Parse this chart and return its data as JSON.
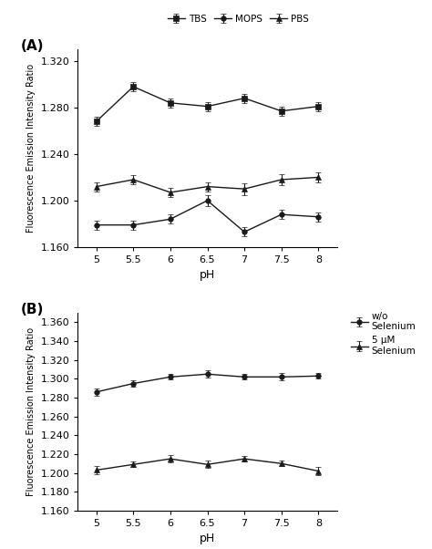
{
  "ph_values": [
    5,
    5.5,
    6,
    6.5,
    7,
    7.5,
    8
  ],
  "ph_labels": [
    "5",
    "5.5",
    "6",
    "6.5",
    "7",
    "7.5",
    "8"
  ],
  "panel_A": {
    "TBS_y": [
      1.268,
      1.298,
      1.284,
      1.281,
      1.288,
      1.277,
      1.281
    ],
    "TBS_err": [
      0.004,
      0.004,
      0.004,
      0.004,
      0.004,
      0.004,
      0.004
    ],
    "MOPS_y": [
      1.179,
      1.179,
      1.184,
      1.2,
      1.173,
      1.188,
      1.186
    ],
    "MOPS_err": [
      0.004,
      0.004,
      0.004,
      0.005,
      0.004,
      0.004,
      0.004
    ],
    "PBS_y": [
      1.212,
      1.218,
      1.207,
      1.212,
      1.21,
      1.218,
      1.22
    ],
    "PBS_err": [
      0.004,
      0.004,
      0.004,
      0.004,
      0.005,
      0.005,
      0.004
    ],
    "ylabel": "Fluorescence Emission Intensity Ratio",
    "xlabel": "pH",
    "ylim": [
      1.16,
      1.33
    ],
    "yticks": [
      1.16,
      1.2,
      1.24,
      1.28,
      1.32
    ],
    "label_A": "(A)"
  },
  "panel_B": {
    "wo_sel_y": [
      1.286,
      1.295,
      1.302,
      1.305,
      1.302,
      1.302,
      1.303
    ],
    "wo_sel_err": [
      0.004,
      0.003,
      0.003,
      0.004,
      0.003,
      0.004,
      0.003
    ],
    "with_sel_y": [
      1.203,
      1.209,
      1.215,
      1.209,
      1.215,
      1.21,
      1.202
    ],
    "with_sel_err": [
      0.004,
      0.003,
      0.004,
      0.004,
      0.003,
      0.003,
      0.004
    ],
    "ylabel": "Fluorescence Emission Intensity Ratio",
    "xlabel": "pH",
    "ylim": [
      1.16,
      1.37
    ],
    "yticks": [
      1.16,
      1.18,
      1.2,
      1.22,
      1.24,
      1.26,
      1.28,
      1.3,
      1.32,
      1.34,
      1.36
    ],
    "label_B": "(B)"
  },
  "line_color": "#1a1a1a",
  "marker_square": "s",
  "marker_circle": "o",
  "marker_triangle": "^",
  "markersize": 4,
  "linewidth": 1.0,
  "capsize": 2,
  "elinewidth": 0.8
}
